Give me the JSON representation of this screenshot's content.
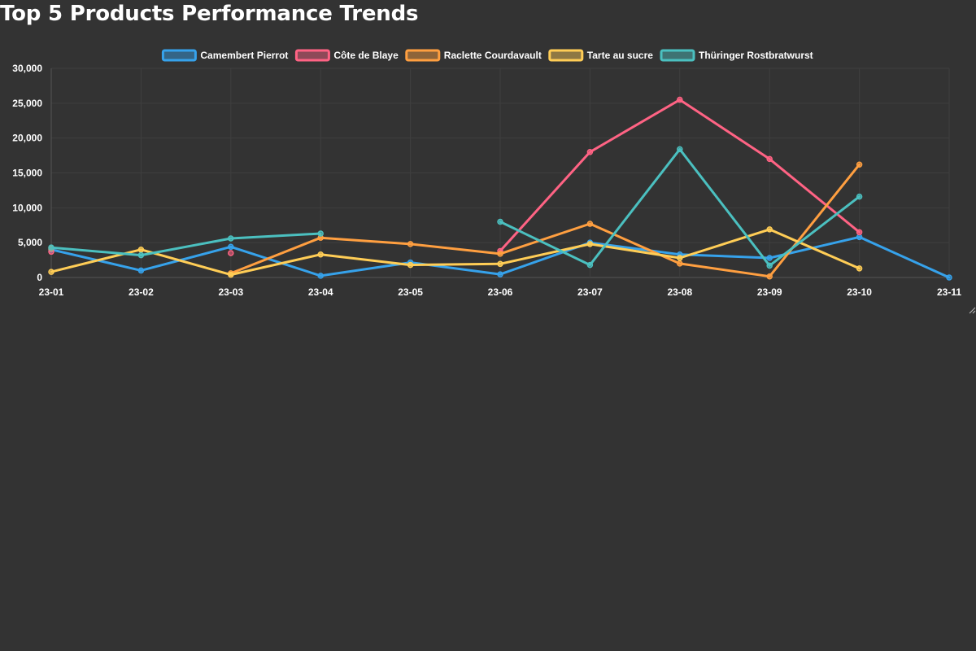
{
  "page": {
    "title": "Top 5 Products Performance Trends"
  },
  "chart_data": {
    "type": "line",
    "title": "Top 5 Products Performance Trends",
    "xlabel": "",
    "ylabel": "",
    "categories": [
      "23-01",
      "23-02",
      "23-03",
      "23-04",
      "23-05",
      "23-06",
      "23-07",
      "23-08",
      "23-09",
      "23-10",
      "23-11"
    ],
    "ylim": [
      0,
      30000
    ],
    "yticks": [
      0,
      5000,
      10000,
      15000,
      20000,
      25000,
      30000
    ],
    "ytick_labels": [
      "0",
      "5,000",
      "10,000",
      "15,000",
      "20,000",
      "25,000",
      "30,000"
    ],
    "grid": true,
    "legend_position": "top-center",
    "series": [
      {
        "name": "Camembert Pierrot",
        "color": "#36a2eb",
        "values": [
          4000,
          1000,
          4400,
          250,
          2150,
          450,
          5000,
          3300,
          2800,
          5800,
          0
        ]
      },
      {
        "name": "Côte de Blaye",
        "color": "#ff6384",
        "values": [
          3700,
          null,
          3500,
          null,
          null,
          3800,
          18000,
          25500,
          17000,
          6500,
          null
        ]
      },
      {
        "name": "Raclette Courdavault",
        "color": "#ff9f40",
        "values": [
          4200,
          null,
          600,
          5700,
          4800,
          3400,
          7700,
          2000,
          150,
          16200,
          null
        ]
      },
      {
        "name": "Tarte au sucre",
        "color": "#ffcd56",
        "values": [
          800,
          4000,
          400,
          3300,
          1800,
          1950,
          4800,
          2800,
          6900,
          1300,
          null
        ]
      },
      {
        "name": "Thüringer Rostbratwurst",
        "color": "#4bc0c0",
        "values": [
          4300,
          3200,
          5600,
          6300,
          null,
          8000,
          1800,
          18400,
          1700,
          11600,
          null
        ]
      }
    ]
  }
}
